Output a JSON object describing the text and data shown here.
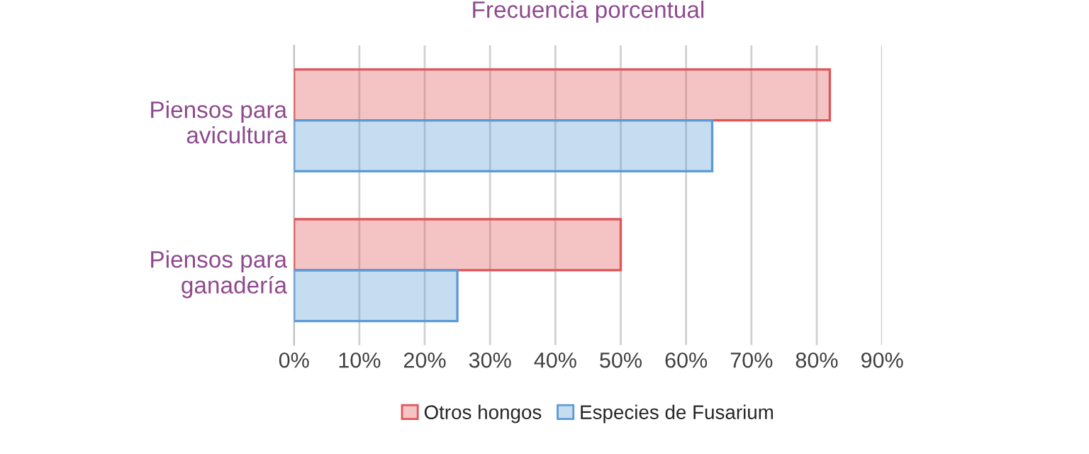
{
  "chart_data": {
    "type": "bar",
    "orientation": "horizontal",
    "title": "Frecuencia porcentual",
    "categories": [
      "Piensos para\navicultura",
      "Piensos para\nganadería"
    ],
    "series": [
      {
        "name": "Otros hongos",
        "color": "#e0555a",
        "values": [
          82,
          50
        ]
      },
      {
        "name": "Especies de Fusarium",
        "color": "#5b9bd5",
        "values": [
          64,
          25
        ]
      }
    ],
    "xlim": [
      0,
      90
    ],
    "xticks": [
      {
        "value": 0,
        "label": "0%"
      },
      {
        "value": 10,
        "label": "10%"
      },
      {
        "value": 20,
        "label": "20%"
      },
      {
        "value": 30,
        "label": "30%"
      },
      {
        "value": 40,
        "label": "40%"
      },
      {
        "value": 50,
        "label": "50%"
      },
      {
        "value": 60,
        "label": "60%"
      },
      {
        "value": 70,
        "label": "70%"
      },
      {
        "value": 80,
        "label": "80%"
      },
      {
        "value": 90,
        "label": "90%"
      }
    ],
    "grid": "x",
    "legend": "bottom"
  }
}
